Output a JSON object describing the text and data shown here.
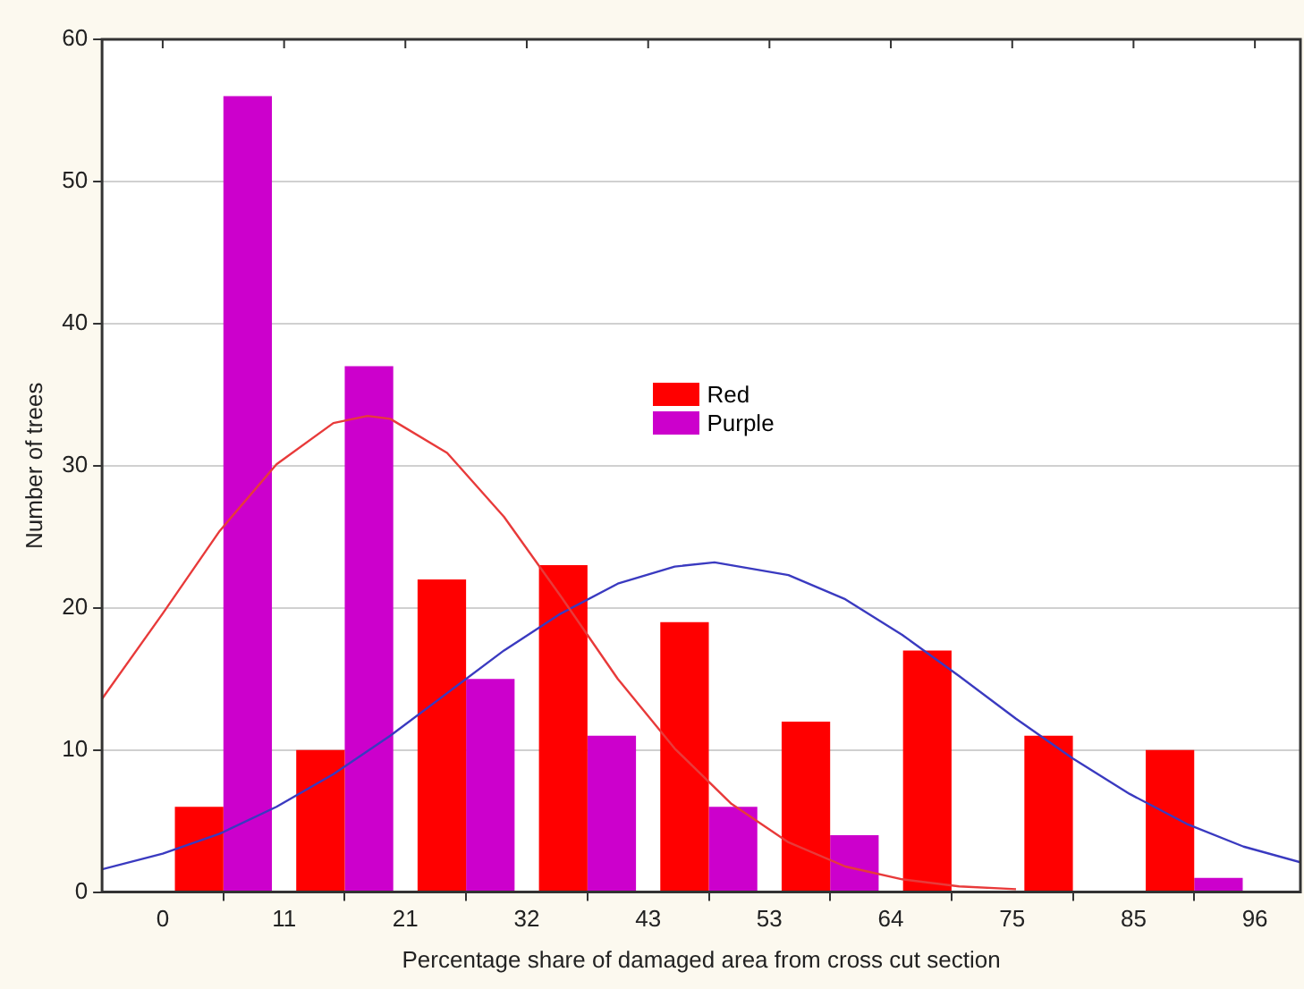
{
  "chart_data": {
    "type": "histogram",
    "xlabel": "Percentage share of damaged area from cross cut section",
    "ylabel": "Number of trees",
    "bins": [
      0,
      10.67,
      21.33,
      32,
      42.67,
      53.33,
      64,
      74.67,
      85.33,
      96
    ],
    "xlim": [
      -5.33,
      100
    ],
    "xticks": [
      0,
      {
        "value": 10.67,
        "label": "11"
      },
      {
        "value": 21.33,
        "label": "21"
      },
      32,
      {
        "value": 42.67,
        "label": "43"
      },
      {
        "value": 53.33,
        "label": "53"
      },
      64,
      {
        "value": 74.67,
        "label": "75"
      },
      {
        "value": 85.33,
        "label": "85"
      },
      96
    ],
    "ylim": [
      0,
      60
    ],
    "yticks": [
      0,
      10,
      20,
      30,
      40,
      50,
      60
    ],
    "grid": "y",
    "legend": "center",
    "series": [
      {
        "name": "Red",
        "color": "#ff0000",
        "values": [
          6,
          10,
          22,
          23,
          19,
          12,
          17,
          11,
          10
        ]
      },
      {
        "name": "Purple",
        "color": "#cc00cc",
        "values": [
          56,
          37,
          15,
          11,
          6,
          4,
          0,
          0,
          1
        ]
      },
      {
        "type": "line",
        "color": "#e83a3a",
        "x": [
          -5.33,
          0,
          5,
          10,
          15,
          18,
          20,
          25,
          30,
          35,
          40,
          45,
          50,
          55,
          60,
          65,
          70,
          75
        ],
        "values": [
          13.6,
          19.6,
          25.4,
          30.1,
          33.0,
          33.5,
          33.3,
          30.9,
          26.4,
          20.8,
          15.0,
          10.1,
          6.2,
          3.5,
          1.8,
          0.9,
          0.4,
          0.2
        ]
      },
      {
        "type": "line",
        "color": "#3a3ac0",
        "x": [
          -5.33,
          0,
          5,
          10,
          15,
          20,
          25,
          30,
          35,
          40,
          45,
          48.5,
          55,
          60,
          65,
          70,
          75,
          80,
          85,
          90,
          95,
          100
        ],
        "values": [
          1.6,
          2.7,
          4.1,
          6.0,
          8.3,
          11.0,
          14.0,
          17.0,
          19.6,
          21.7,
          22.9,
          23.2,
          22.3,
          20.6,
          18.1,
          15.2,
          12.2,
          9.4,
          6.9,
          4.8,
          3.2,
          2.1
        ]
      }
    ]
  }
}
